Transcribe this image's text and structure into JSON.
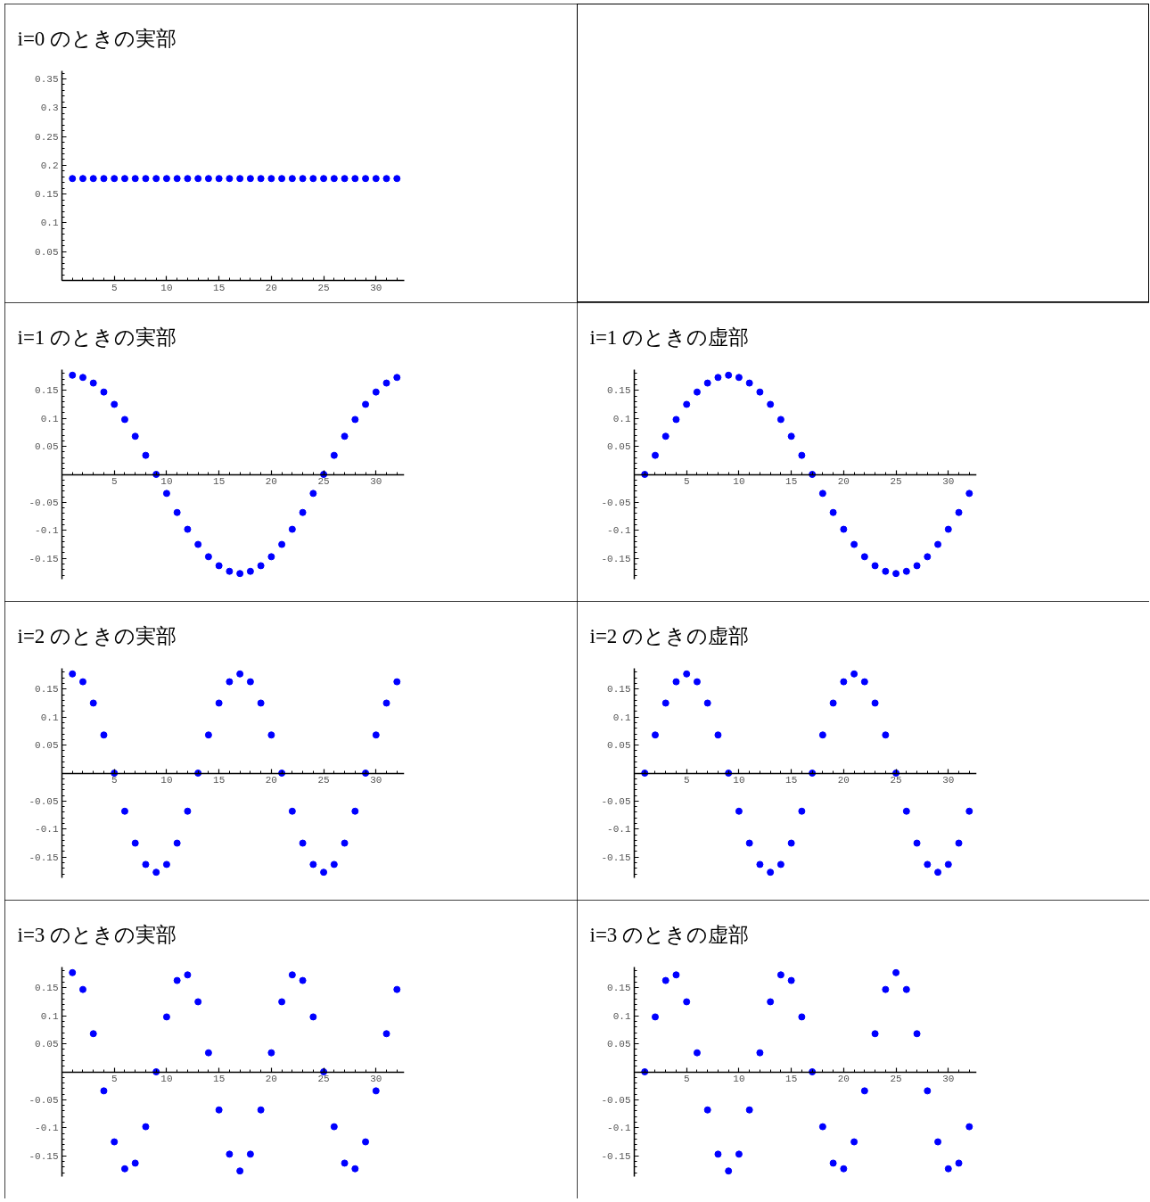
{
  "chart_data": [
    {
      "type": "scatter",
      "title": "i=0 のときの実部",
      "x": [
        1,
        2,
        3,
        4,
        5,
        6,
        7,
        8,
        9,
        10,
        11,
        12,
        13,
        14,
        15,
        16,
        17,
        18,
        19,
        20,
        21,
        22,
        23,
        24,
        25,
        26,
        27,
        28,
        29,
        30,
        31,
        32
      ],
      "values": [
        0.177,
        0.177,
        0.177,
        0.177,
        0.177,
        0.177,
        0.177,
        0.177,
        0.177,
        0.177,
        0.177,
        0.177,
        0.177,
        0.177,
        0.177,
        0.177,
        0.177,
        0.177,
        0.177,
        0.177,
        0.177,
        0.177,
        0.177,
        0.177,
        0.177,
        0.177,
        0.177,
        0.177,
        0.177,
        0.177,
        0.177,
        0.177
      ],
      "color": "#0000ff",
      "marker": "circle",
      "xlim": [
        0,
        32.7
      ],
      "ylim": [
        0,
        0.364
      ],
      "xticks": [
        5,
        10,
        15,
        20,
        25,
        30
      ],
      "yticks": [
        0.05,
        0.1,
        0.15,
        0.2,
        0.25,
        0.3,
        0.35
      ]
    },
    {
      "type": "scatter",
      "title": "i=1 のときの実部",
      "x": [
        1,
        2,
        3,
        4,
        5,
        6,
        7,
        8,
        9,
        10,
        11,
        12,
        13,
        14,
        15,
        16,
        17,
        18,
        19,
        20,
        21,
        22,
        23,
        24,
        25,
        26,
        27,
        28,
        29,
        30,
        31,
        32
      ],
      "values": [
        0.177,
        0.173,
        0.163,
        0.147,
        0.125,
        0.098,
        0.068,
        0.034,
        0,
        -0.034,
        -0.068,
        -0.098,
        -0.125,
        -0.147,
        -0.163,
        -0.173,
        -0.177,
        -0.173,
        -0.163,
        -0.147,
        -0.125,
        -0.098,
        -0.068,
        -0.034,
        0,
        0.034,
        0.068,
        0.098,
        0.125,
        0.147,
        0.163,
        0.173
      ],
      "color": "#0000ff",
      "marker": "circle",
      "xlim": [
        0,
        32.7
      ],
      "ylim": [
        -0.187,
        0.187
      ],
      "xticks": [
        5,
        10,
        15,
        20,
        25,
        30
      ],
      "yticks": [
        -0.15,
        -0.1,
        -0.05,
        0.05,
        0.1,
        0.15
      ]
    },
    {
      "type": "scatter",
      "title": "i=1 のときの虚部",
      "x": [
        1,
        2,
        3,
        4,
        5,
        6,
        7,
        8,
        9,
        10,
        11,
        12,
        13,
        14,
        15,
        16,
        17,
        18,
        19,
        20,
        21,
        22,
        23,
        24,
        25,
        26,
        27,
        28,
        29,
        30,
        31,
        32
      ],
      "values": [
        0,
        0.034,
        0.068,
        0.098,
        0.125,
        0.147,
        0.163,
        0.173,
        0.177,
        0.173,
        0.163,
        0.147,
        0.125,
        0.098,
        0.068,
        0.034,
        0,
        -0.034,
        -0.068,
        -0.098,
        -0.125,
        -0.147,
        -0.163,
        -0.173,
        -0.177,
        -0.173,
        -0.163,
        -0.147,
        -0.125,
        -0.098,
        -0.068,
        -0.034
      ],
      "color": "#0000ff",
      "marker": "circle",
      "xlim": [
        0,
        32.7
      ],
      "ylim": [
        -0.187,
        0.187
      ],
      "xticks": [
        5,
        10,
        15,
        20,
        25,
        30
      ],
      "yticks": [
        -0.15,
        -0.1,
        -0.05,
        0.05,
        0.1,
        0.15
      ]
    },
    {
      "type": "scatter",
      "title": "i=2 のときの実部",
      "x": [
        1,
        2,
        3,
        4,
        5,
        6,
        7,
        8,
        9,
        10,
        11,
        12,
        13,
        14,
        15,
        16,
        17,
        18,
        19,
        20,
        21,
        22,
        23,
        24,
        25,
        26,
        27,
        28,
        29,
        30,
        31,
        32
      ],
      "values": [
        0.177,
        0.163,
        0.125,
        0.068,
        0,
        -0.068,
        -0.125,
        -0.163,
        -0.177,
        -0.163,
        -0.125,
        -0.068,
        0,
        0.068,
        0.125,
        0.163,
        0.177,
        0.163,
        0.125,
        0.068,
        0,
        -0.068,
        -0.125,
        -0.163,
        -0.177,
        -0.163,
        -0.125,
        -0.068,
        0,
        0.068,
        0.125,
        0.163
      ],
      "color": "#0000ff",
      "marker": "circle",
      "xlim": [
        0,
        32.7
      ],
      "ylim": [
        -0.187,
        0.187
      ],
      "xticks": [
        5,
        10,
        15,
        20,
        25,
        30
      ],
      "yticks": [
        -0.15,
        -0.1,
        -0.05,
        0.05,
        0.1,
        0.15
      ]
    },
    {
      "type": "scatter",
      "title": "i=2 のときの虚部",
      "x": [
        1,
        2,
        3,
        4,
        5,
        6,
        7,
        8,
        9,
        10,
        11,
        12,
        13,
        14,
        15,
        16,
        17,
        18,
        19,
        20,
        21,
        22,
        23,
        24,
        25,
        26,
        27,
        28,
        29,
        30,
        31,
        32
      ],
      "values": [
        0,
        0.068,
        0.125,
        0.163,
        0.177,
        0.163,
        0.125,
        0.068,
        0,
        -0.068,
        -0.125,
        -0.163,
        -0.177,
        -0.163,
        -0.125,
        -0.068,
        0,
        0.068,
        0.125,
        0.163,
        0.177,
        0.163,
        0.125,
        0.068,
        0,
        -0.068,
        -0.125,
        -0.163,
        -0.177,
        -0.163,
        -0.125,
        -0.068
      ],
      "color": "#0000ff",
      "marker": "circle",
      "xlim": [
        0,
        32.7
      ],
      "ylim": [
        -0.187,
        0.187
      ],
      "xticks": [
        5,
        10,
        15,
        20,
        25,
        30
      ],
      "yticks": [
        -0.15,
        -0.1,
        -0.05,
        0.05,
        0.1,
        0.15
      ]
    },
    {
      "type": "scatter",
      "title": "i=3 のときの実部",
      "x": [
        1,
        2,
        3,
        4,
        5,
        6,
        7,
        8,
        9,
        10,
        11,
        12,
        13,
        14,
        15,
        16,
        17,
        18,
        19,
        20,
        21,
        22,
        23,
        24,
        25,
        26,
        27,
        28,
        29,
        30,
        31,
        32
      ],
      "values": [
        0.177,
        0.147,
        0.068,
        -0.034,
        -0.125,
        -0.173,
        -0.163,
        -0.098,
        0,
        0.098,
        0.163,
        0.173,
        0.125,
        0.034,
        -0.068,
        -0.147,
        -0.177,
        -0.147,
        -0.068,
        0.034,
        0.125,
        0.173,
        0.163,
        0.098,
        0,
        -0.098,
        -0.163,
        -0.173,
        -0.125,
        -0.034,
        0.068,
        0.147
      ],
      "color": "#0000ff",
      "marker": "circle",
      "xlim": [
        0,
        32.7
      ],
      "ylim": [
        -0.187,
        0.187
      ],
      "xticks": [
        5,
        10,
        15,
        20,
        25,
        30
      ],
      "yticks": [
        -0.15,
        -0.1,
        -0.05,
        0.05,
        0.1,
        0.15
      ]
    },
    {
      "type": "scatter",
      "title": "i=3 のときの虚部",
      "x": [
        1,
        2,
        3,
        4,
        5,
        6,
        7,
        8,
        9,
        10,
        11,
        12,
        13,
        14,
        15,
        16,
        17,
        18,
        19,
        20,
        21,
        22,
        23,
        24,
        25,
        26,
        27,
        28,
        29,
        30,
        31,
        32
      ],
      "values": [
        0,
        0.098,
        0.163,
        0.173,
        0.125,
        0.034,
        -0.068,
        -0.147,
        -0.177,
        -0.147,
        -0.068,
        0.034,
        0.125,
        0.173,
        0.163,
        0.098,
        0,
        -0.098,
        -0.163,
        -0.173,
        -0.125,
        -0.034,
        0.068,
        0.147,
        0.177,
        0.147,
        0.068,
        -0.034,
        -0.125,
        -0.173,
        -0.163,
        -0.098
      ],
      "color": "#0000ff",
      "marker": "circle",
      "xlim": [
        0,
        32.7
      ],
      "ylim": [
        -0.187,
        0.187
      ],
      "xticks": [
        5,
        10,
        15,
        20,
        25,
        30
      ],
      "yticks": [
        -0.15,
        -0.1,
        -0.05,
        0.05,
        0.1,
        0.15
      ]
    }
  ]
}
